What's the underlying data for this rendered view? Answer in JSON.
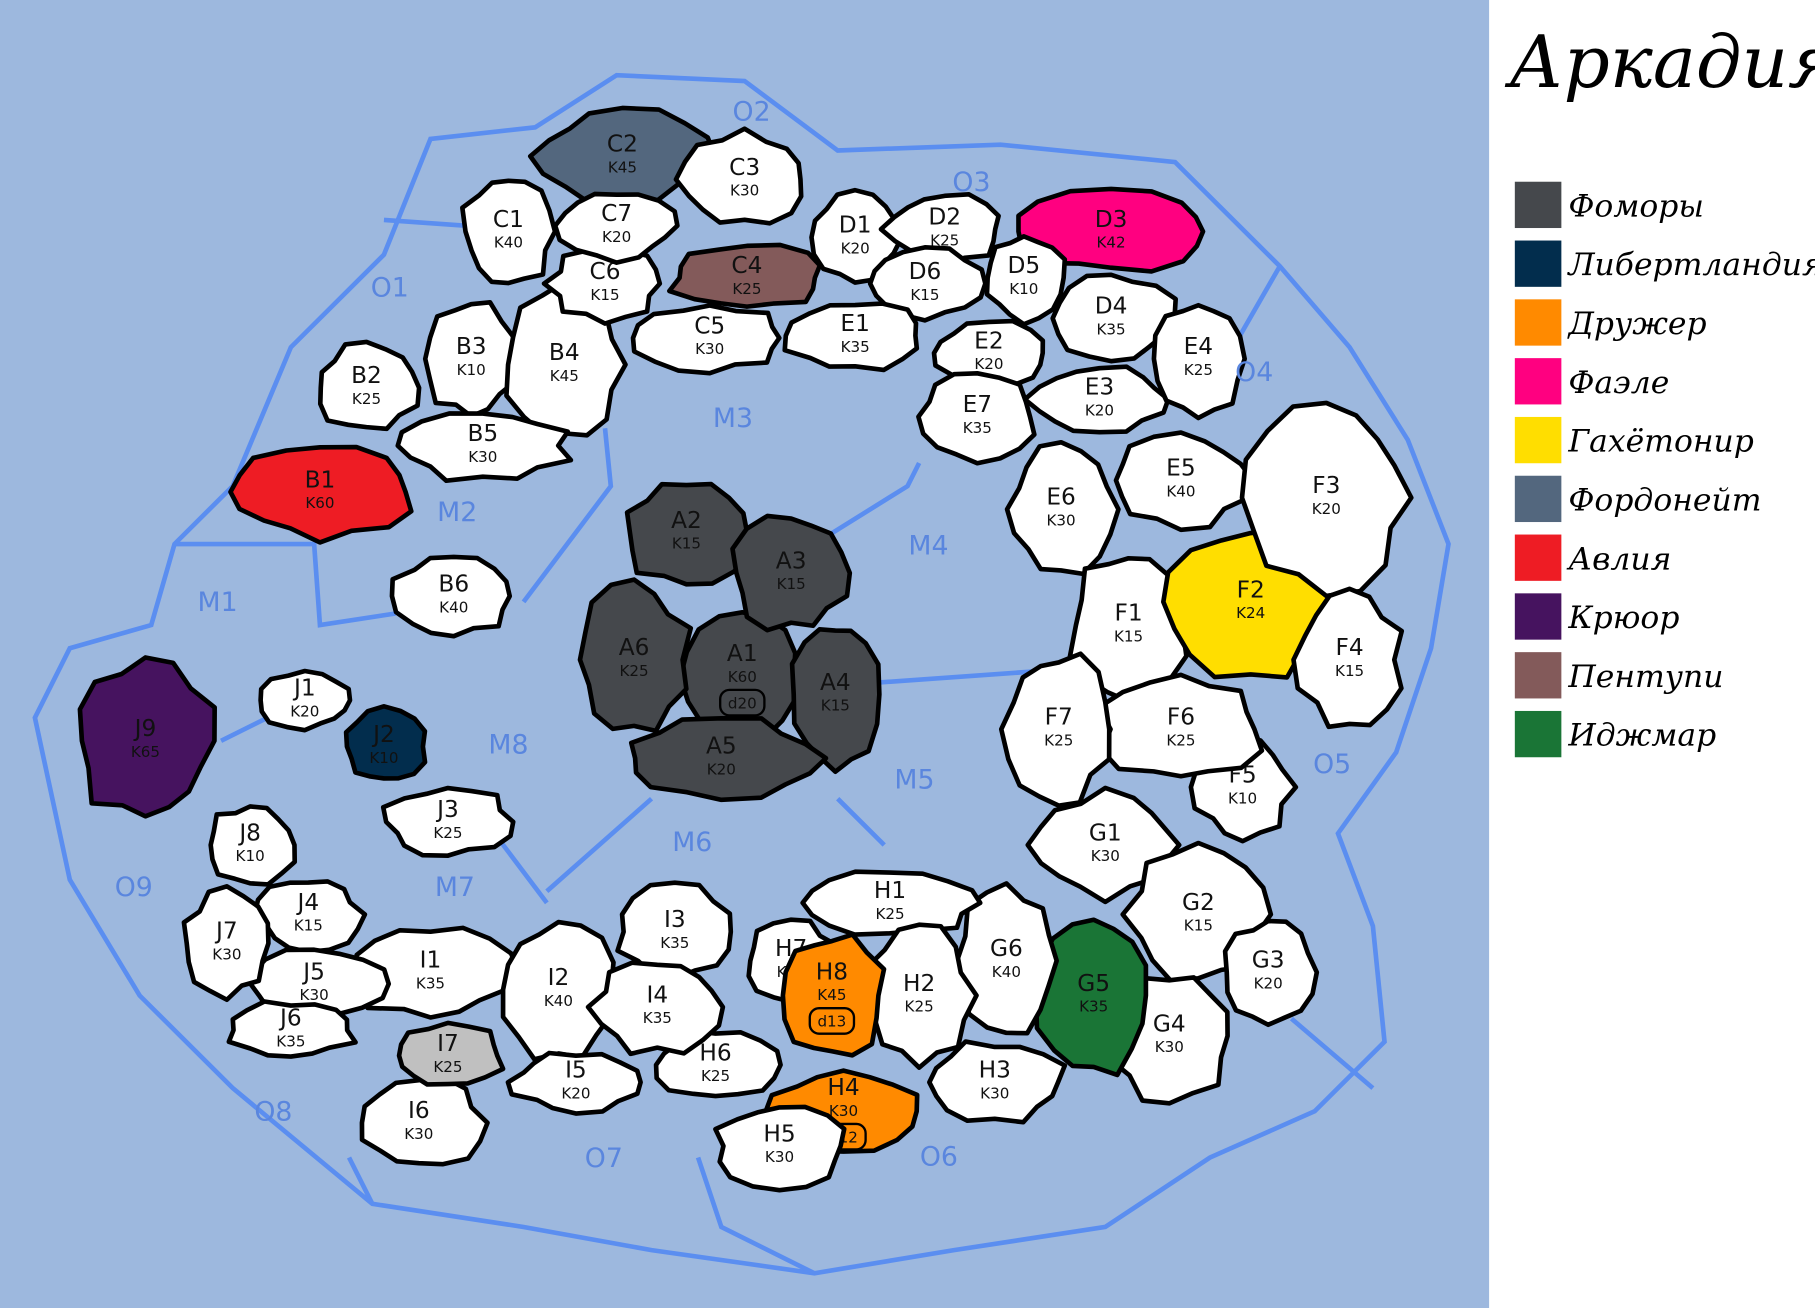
{
  "title": "Аркадия",
  "colors": {
    "sea": "#9db8de",
    "land": "#ffffff",
    "border": "#000000",
    "sea_line": "#5b8ef0",
    "sea_text": "#5a86de",
    "neutral_grey": "#c0c0c0"
  },
  "factions": [
    {
      "name": "Фоморы",
      "color": "#45484c"
    },
    {
      "name": "Либертландия",
      "color": "#022d4d"
    },
    {
      "name": "Дружер",
      "color": "#ff8a00"
    },
    {
      "name": "Фаэле",
      "color": "#ff0080"
    },
    {
      "name": "Гахётонир",
      "color": "#ffde00"
    },
    {
      "name": "Фордонейт",
      "color": "#53677e"
    },
    {
      "name": "Авлия",
      "color": "#ee1c24"
    },
    {
      "name": "Крюор",
      "color": "#46135f"
    },
    {
      "name": "Пентупи",
      "color": "#835a5a"
    },
    {
      "name": "Иджмар",
      "color": "#1a7536"
    }
  ],
  "territories": [
    {
      "id": "A1",
      "value": "K60",
      "owner": "Фоморы",
      "dice": "d20"
    },
    {
      "id": "A2",
      "value": "K15",
      "owner": "Фоморы"
    },
    {
      "id": "A3",
      "value": "K15",
      "owner": "Фоморы"
    },
    {
      "id": "A4",
      "value": "K15",
      "owner": "Фоморы"
    },
    {
      "id": "A5",
      "value": "K20",
      "owner": "Фоморы"
    },
    {
      "id": "A6",
      "value": "K25",
      "owner": "Фоморы"
    },
    {
      "id": "B1",
      "value": "K60",
      "owner": "Авлия"
    },
    {
      "id": "B2",
      "value": "K25"
    },
    {
      "id": "B3",
      "value": "K10"
    },
    {
      "id": "B4",
      "value": "K45"
    },
    {
      "id": "B5",
      "value": "K30"
    },
    {
      "id": "B6",
      "value": "K40"
    },
    {
      "id": "C1",
      "value": "K40"
    },
    {
      "id": "C2",
      "value": "K45",
      "owner": "Фордонейт"
    },
    {
      "id": "C3",
      "value": "K30"
    },
    {
      "id": "C4",
      "value": "K25",
      "owner": "Пентупи"
    },
    {
      "id": "C5",
      "value": "K30"
    },
    {
      "id": "C6",
      "value": "K15"
    },
    {
      "id": "C7",
      "value": "K20"
    },
    {
      "id": "D1",
      "value": "K20"
    },
    {
      "id": "D2",
      "value": "K25"
    },
    {
      "id": "D3",
      "value": "K42",
      "owner": "Фаэле"
    },
    {
      "id": "D4",
      "value": "K35"
    },
    {
      "id": "D5",
      "value": "K10"
    },
    {
      "id": "D6",
      "value": "K15"
    },
    {
      "id": "E1",
      "value": "K35"
    },
    {
      "id": "E2",
      "value": "K20"
    },
    {
      "id": "E3",
      "value": "K20"
    },
    {
      "id": "E4",
      "value": "K25"
    },
    {
      "id": "E5",
      "value": "K40"
    },
    {
      "id": "E6",
      "value": "K30"
    },
    {
      "id": "E7",
      "value": "K35"
    },
    {
      "id": "F1",
      "value": "K15"
    },
    {
      "id": "F2",
      "value": "K24",
      "owner": "Гахётонир"
    },
    {
      "id": "F3",
      "value": "K20"
    },
    {
      "id": "F4",
      "value": "K15"
    },
    {
      "id": "F5",
      "value": "K10"
    },
    {
      "id": "F6",
      "value": "K25"
    },
    {
      "id": "F7",
      "value": "K25"
    },
    {
      "id": "G1",
      "value": "K30"
    },
    {
      "id": "G2",
      "value": "K15"
    },
    {
      "id": "G3",
      "value": "K20"
    },
    {
      "id": "G4",
      "value": "K30"
    },
    {
      "id": "G5",
      "value": "K35",
      "owner": "Иджмар"
    },
    {
      "id": "G6",
      "value": "K40"
    },
    {
      "id": "H1",
      "value": "K25"
    },
    {
      "id": "H2",
      "value": "K25"
    },
    {
      "id": "H3",
      "value": "K30"
    },
    {
      "id": "H4",
      "value": "K30",
      "owner": "Дружер",
      "dice": "d12"
    },
    {
      "id": "H5",
      "value": "K30"
    },
    {
      "id": "H6",
      "value": "K25"
    },
    {
      "id": "H7",
      "value": "K20"
    },
    {
      "id": "H8",
      "value": "K45",
      "owner": "Дружер",
      "dice": "d13"
    },
    {
      "id": "I1",
      "value": "K35"
    },
    {
      "id": "I2",
      "value": "K40"
    },
    {
      "id": "I3",
      "value": "K35"
    },
    {
      "id": "I4",
      "value": "K35"
    },
    {
      "id": "I5",
      "value": "K20"
    },
    {
      "id": "I6",
      "value": "K30"
    },
    {
      "id": "I7",
      "value": "K25",
      "fill": "#c0c0c0"
    },
    {
      "id": "J1",
      "value": "K20"
    },
    {
      "id": "J2",
      "value": "K10",
      "owner": "Либертландия"
    },
    {
      "id": "J3",
      "value": "K25"
    },
    {
      "id": "J4",
      "value": "K15"
    },
    {
      "id": "J5",
      "value": "K30"
    },
    {
      "id": "J6",
      "value": "K35"
    },
    {
      "id": "J7",
      "value": "K30"
    },
    {
      "id": "J8",
      "value": "K10"
    },
    {
      "id": "J9",
      "value": "K65",
      "owner": "Крюор"
    }
  ],
  "seas": [
    "O1",
    "O2",
    "O3",
    "O4",
    "O5",
    "O6",
    "O7",
    "O8",
    "O9",
    "M1",
    "M2",
    "M3",
    "M4",
    "M5",
    "M6",
    "M7",
    "M8"
  ]
}
